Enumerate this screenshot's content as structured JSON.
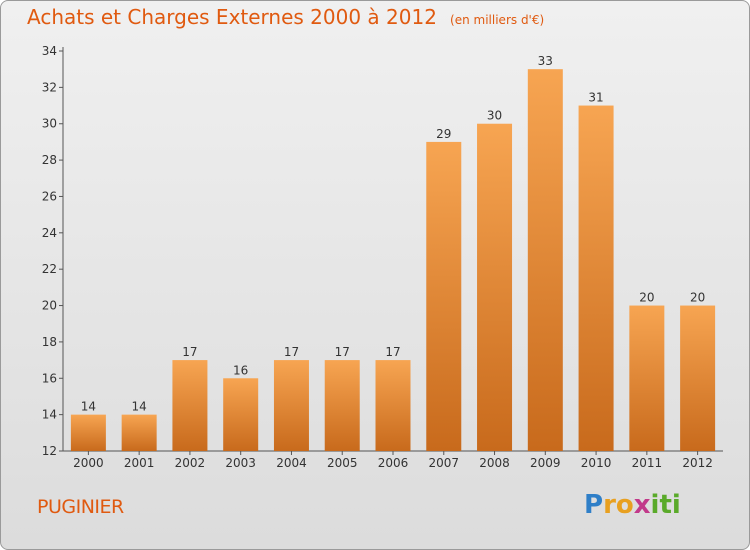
{
  "title": "Achats et Charges Externes 2000 à 2012",
  "unit": "(en milliers d'€)",
  "commune": "PUGINIER",
  "logo": {
    "text": "Proxiti",
    "letters": [
      {
        "ch": "P",
        "color": "#2f7fc8"
      },
      {
        "ch": "r",
        "color": "#e8a020"
      },
      {
        "ch": "o",
        "color": "#e8a020"
      },
      {
        "ch": "x",
        "color": "#c23a8a"
      },
      {
        "ch": "i",
        "color": "#5aaa2a"
      },
      {
        "ch": "t",
        "color": "#5aaa2a"
      },
      {
        "ch": "i",
        "color": "#5aaa2a"
      }
    ]
  },
  "colors": {
    "accent": "#e05a10",
    "bar_top": "#f7a552",
    "bar_bottom": "#c86a1c"
  },
  "chart_data": {
    "type": "bar",
    "categories": [
      "2000",
      "2001",
      "2002",
      "2003",
      "2004",
      "2005",
      "2006",
      "2007",
      "2008",
      "2009",
      "2010",
      "2011",
      "2012"
    ],
    "values": [
      14,
      14,
      17,
      16,
      17,
      17,
      17,
      29,
      30,
      33,
      31,
      20,
      20
    ],
    "ylim": [
      12,
      34
    ],
    "yticks": [
      12,
      14,
      16,
      18,
      20,
      22,
      24,
      26,
      28,
      30,
      32,
      34
    ],
    "grid": false
  }
}
